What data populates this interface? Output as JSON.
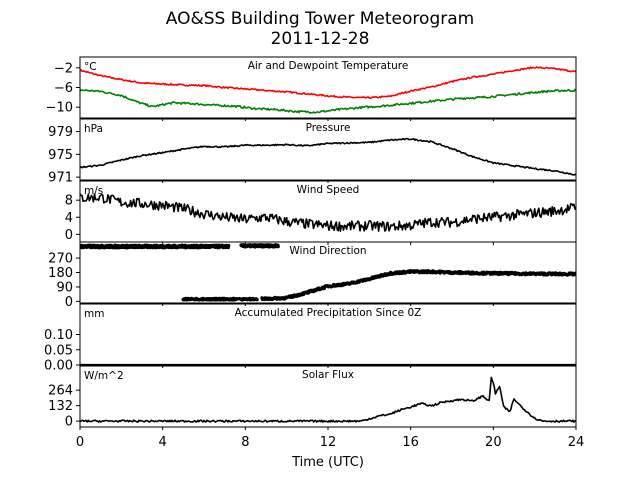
{
  "figure": {
    "title_line1": "AO&SS Building Tower Meteorogram",
    "title_line2": "2011-12-28",
    "xlabel": "Time (UTC)",
    "xticks": [
      "0",
      "4",
      "8",
      "12",
      "16",
      "20",
      "24"
    ],
    "xlim": [
      0,
      24
    ]
  },
  "colors": {
    "temperature": "#ff0000",
    "dewpoint": "#008000",
    "series": "#000000",
    "axes": "#000000"
  },
  "chart_data": [
    {
      "type": "line",
      "title": "Air and Dewpoint Temperature",
      "unit": "°C",
      "ylim": [
        -12.2,
        0.2
      ],
      "ytick_values": [
        -2,
        -6,
        -10
      ],
      "yticks": [
        "−2",
        "−6",
        "−10"
      ],
      "series": [
        {
          "key": "temperature",
          "x": [
            0,
            1,
            2,
            3,
            4,
            5,
            6,
            7,
            8,
            9,
            10,
            11,
            12,
            13,
            14,
            15,
            16,
            17,
            18,
            19,
            20,
            21,
            22,
            23,
            24
          ],
          "y": [
            -2.5,
            -3.6,
            -4.4,
            -5.1,
            -5.3,
            -5.5,
            -5.6,
            -6.0,
            -6.3,
            -6.6,
            -6.9,
            -7.3,
            -7.7,
            -8.0,
            -8.1,
            -7.8,
            -6.7,
            -5.9,
            -4.8,
            -3.9,
            -3.3,
            -2.5,
            -1.9,
            -2.2,
            -2.8
          ],
          "noise": 0.15
        },
        {
          "key": "dewpoint",
          "x": [
            0,
            1,
            2,
            2.8,
            3.5,
            4.5,
            5.5,
            6.5,
            7.5,
            8.5,
            9.5,
            10.5,
            11.5,
            12.5,
            13.5,
            14.5,
            15.5,
            16.5,
            17.5,
            18.5,
            19.5,
            20.5,
            21.5,
            22.5,
            23.5,
            24
          ],
          "y": [
            -6.5,
            -6.8,
            -7.6,
            -9.0,
            -9.9,
            -9.1,
            -9.3,
            -9.6,
            -9.8,
            -10.3,
            -10.5,
            -10.9,
            -11.0,
            -10.5,
            -10.1,
            -9.8,
            -9.4,
            -9.0,
            -8.6,
            -8.2,
            -8.0,
            -7.6,
            -7.2,
            -6.8,
            -6.6,
            -6.6
          ],
          "noise": 0.2
        }
      ]
    },
    {
      "type": "line",
      "title": "Pressure",
      "unit": "hPa",
      "ylim": [
        970.5,
        981.2
      ],
      "ytick_values": [
        979,
        975,
        971
      ],
      "yticks": [
        "979",
        "975",
        "971"
      ],
      "series": [
        {
          "key": "series",
          "x": [
            0,
            1,
            2,
            3,
            4,
            5,
            6,
            7,
            8,
            9,
            10,
            11,
            12,
            13,
            14,
            15,
            16,
            17,
            18,
            19,
            20,
            21,
            22,
            23,
            24
          ],
          "y": [
            972.7,
            973.1,
            974.0,
            974.8,
            975.3,
            975.9,
            976.4,
            976.3,
            976.6,
            976.6,
            976.7,
            976.5,
            976.9,
            977.0,
            977.1,
            977.5,
            977.7,
            977.2,
            976.0,
            974.6,
            973.5,
            973.0,
            972.5,
            972.1,
            971.4
          ],
          "noise": 0.12
        }
      ]
    },
    {
      "type": "line",
      "title": "Wind Speed",
      "unit": "m/s",
      "ylim": [
        -1.8,
        12.5
      ],
      "ytick_values": [
        8,
        4,
        0
      ],
      "yticks": [
        "8",
        "4",
        "0"
      ],
      "series": [
        {
          "key": "series",
          "x": [
            0,
            1,
            2,
            3,
            4,
            5,
            6,
            7,
            8,
            9,
            10,
            11,
            12,
            13,
            14,
            15,
            16,
            17,
            18,
            19,
            20,
            21,
            22,
            23,
            24
          ],
          "y": [
            8.5,
            8.7,
            7.5,
            7.2,
            6.8,
            6.0,
            4.8,
            4.0,
            3.5,
            4.0,
            3.0,
            2.4,
            2.0,
            1.9,
            2.0,
            1.8,
            2.1,
            2.9,
            2.8,
            3.6,
            4.0,
            4.5,
            5.0,
            5.5,
            6.3
          ],
          "noise": 1.2
        }
      ]
    },
    {
      "type": "scatter",
      "title": "Wind Direction",
      "unit": "",
      "ylim": [
        -10,
        370
      ],
      "ytick_values": [
        270,
        180,
        90,
        0
      ],
      "yticks": [
        "270",
        "180",
        "90",
        "0"
      ],
      "series": [
        {
          "key": "series",
          "segment": "north-band",
          "x_range": [
            0,
            7.2
          ],
          "y_mean": 342,
          "spread": 14
        },
        {
          "key": "series",
          "segment": "north-gap",
          "x_range": [
            7.8,
            9.6
          ],
          "y_mean": 346,
          "spread": 12
        },
        {
          "key": "series",
          "segment": "low-band",
          "x_range": [
            5.0,
            8.6
          ],
          "y_mean": 14,
          "spread": 8
        },
        {
          "key": "series",
          "segment": "ramp",
          "x": [
            8.8,
            10,
            11,
            12,
            13,
            14,
            15,
            16,
            17,
            18,
            20,
            22,
            24
          ],
          "y": [
            15,
            22,
            55,
            95,
            110,
            140,
            175,
            185,
            185,
            180,
            175,
            172,
            170
          ],
          "spread": 14
        }
      ]
    },
    {
      "type": "line",
      "title": "Accumulated Precipitation Since 0Z",
      "unit": "mm",
      "ylim": [
        0,
        0.2
      ],
      "ytick_values": [
        0.1,
        0.05,
        0.0
      ],
      "yticks": [
        "0.10",
        "0.05",
        "0.00"
      ],
      "series": [
        {
          "key": "series",
          "x": [
            0,
            24
          ],
          "y": [
            0,
            0
          ],
          "noise": 0
        }
      ]
    },
    {
      "type": "line",
      "title": "Solar Flux",
      "unit": "W/m^2",
      "ylim": [
        -50,
        470
      ],
      "ytick_values": [
        264,
        132,
        0
      ],
      "yticks": [
        "264",
        "132",
        "0"
      ],
      "series": [
        {
          "key": "series",
          "x": [
            0,
            13.6,
            14.0,
            14.5,
            15.0,
            15.5,
            16.0,
            16.5,
            17.0,
            17.5,
            18.0,
            18.5,
            19.0,
            19.5,
            19.8,
            19.9,
            20.0,
            20.1,
            20.3,
            20.5,
            20.8,
            21.0,
            21.2,
            21.5,
            22.0,
            22.4,
            24
          ],
          "y": [
            0,
            0,
            20,
            45,
            60,
            95,
            120,
            150,
            130,
            160,
            175,
            185,
            170,
            215,
            170,
            370,
            330,
            230,
            300,
            120,
            80,
            190,
            150,
            100,
            25,
            0,
            0
          ],
          "noise": 8
        }
      ]
    }
  ]
}
